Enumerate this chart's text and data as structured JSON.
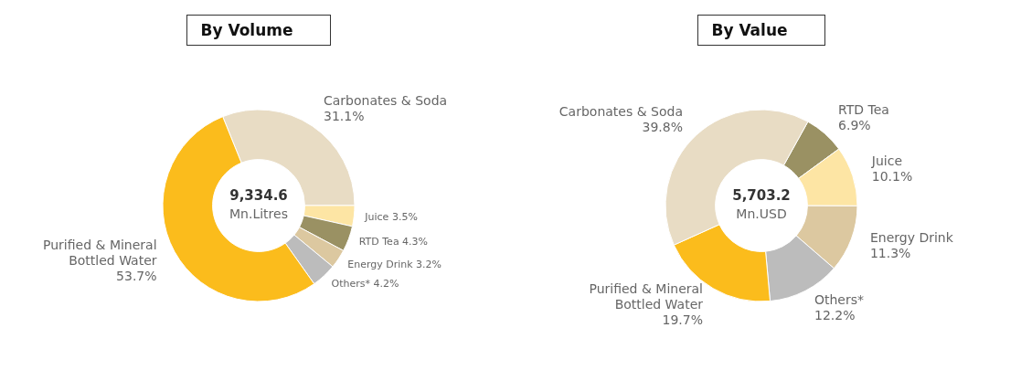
{
  "chart_data": [
    {
      "type": "donut",
      "title": "By Volume",
      "categories": [
        "Carbonates & Soda",
        "Juice",
        "RTD Tea",
        "Energy Drink",
        "Others*",
        "Purified & Mineral Bottled Water"
      ],
      "values": [
        31.1,
        3.5,
        4.3,
        3.2,
        4.2,
        53.7
      ],
      "value_labels": [
        "31.1%",
        "3.5%",
        "4.3%",
        "3.2%",
        "4.2%",
        "53.7%"
      ],
      "colors": [
        "#e8dcc4",
        "#fde5a4",
        "#9a9163",
        "#dcc8a0",
        "#bcbcbc",
        "#fbbc1c"
      ],
      "annotations": [
        "9,334.6",
        "Mn.Litres"
      ],
      "legend": false
    },
    {
      "type": "donut",
      "title": "By Value",
      "categories": [
        "RTD Tea",
        "Juice",
        "Energy Drink",
        "Others*",
        "Purified & Mineral Bottled Water",
        "Carbonates & Soda"
      ],
      "values": [
        6.9,
        10.1,
        11.3,
        12.2,
        19.7,
        39.8
      ],
      "value_labels": [
        "6.9%",
        "10.1%",
        "11.3%",
        "12.2%",
        "19.7%",
        "39.8%"
      ],
      "colors": [
        "#9a9163",
        "#fde5a4",
        "#dcc8a0",
        "#bcbcbc",
        "#fbbc1c",
        "#e8dcc4"
      ],
      "annotations": [
        "5,703.2",
        "Mn.USD"
      ],
      "legend": false
    }
  ]
}
